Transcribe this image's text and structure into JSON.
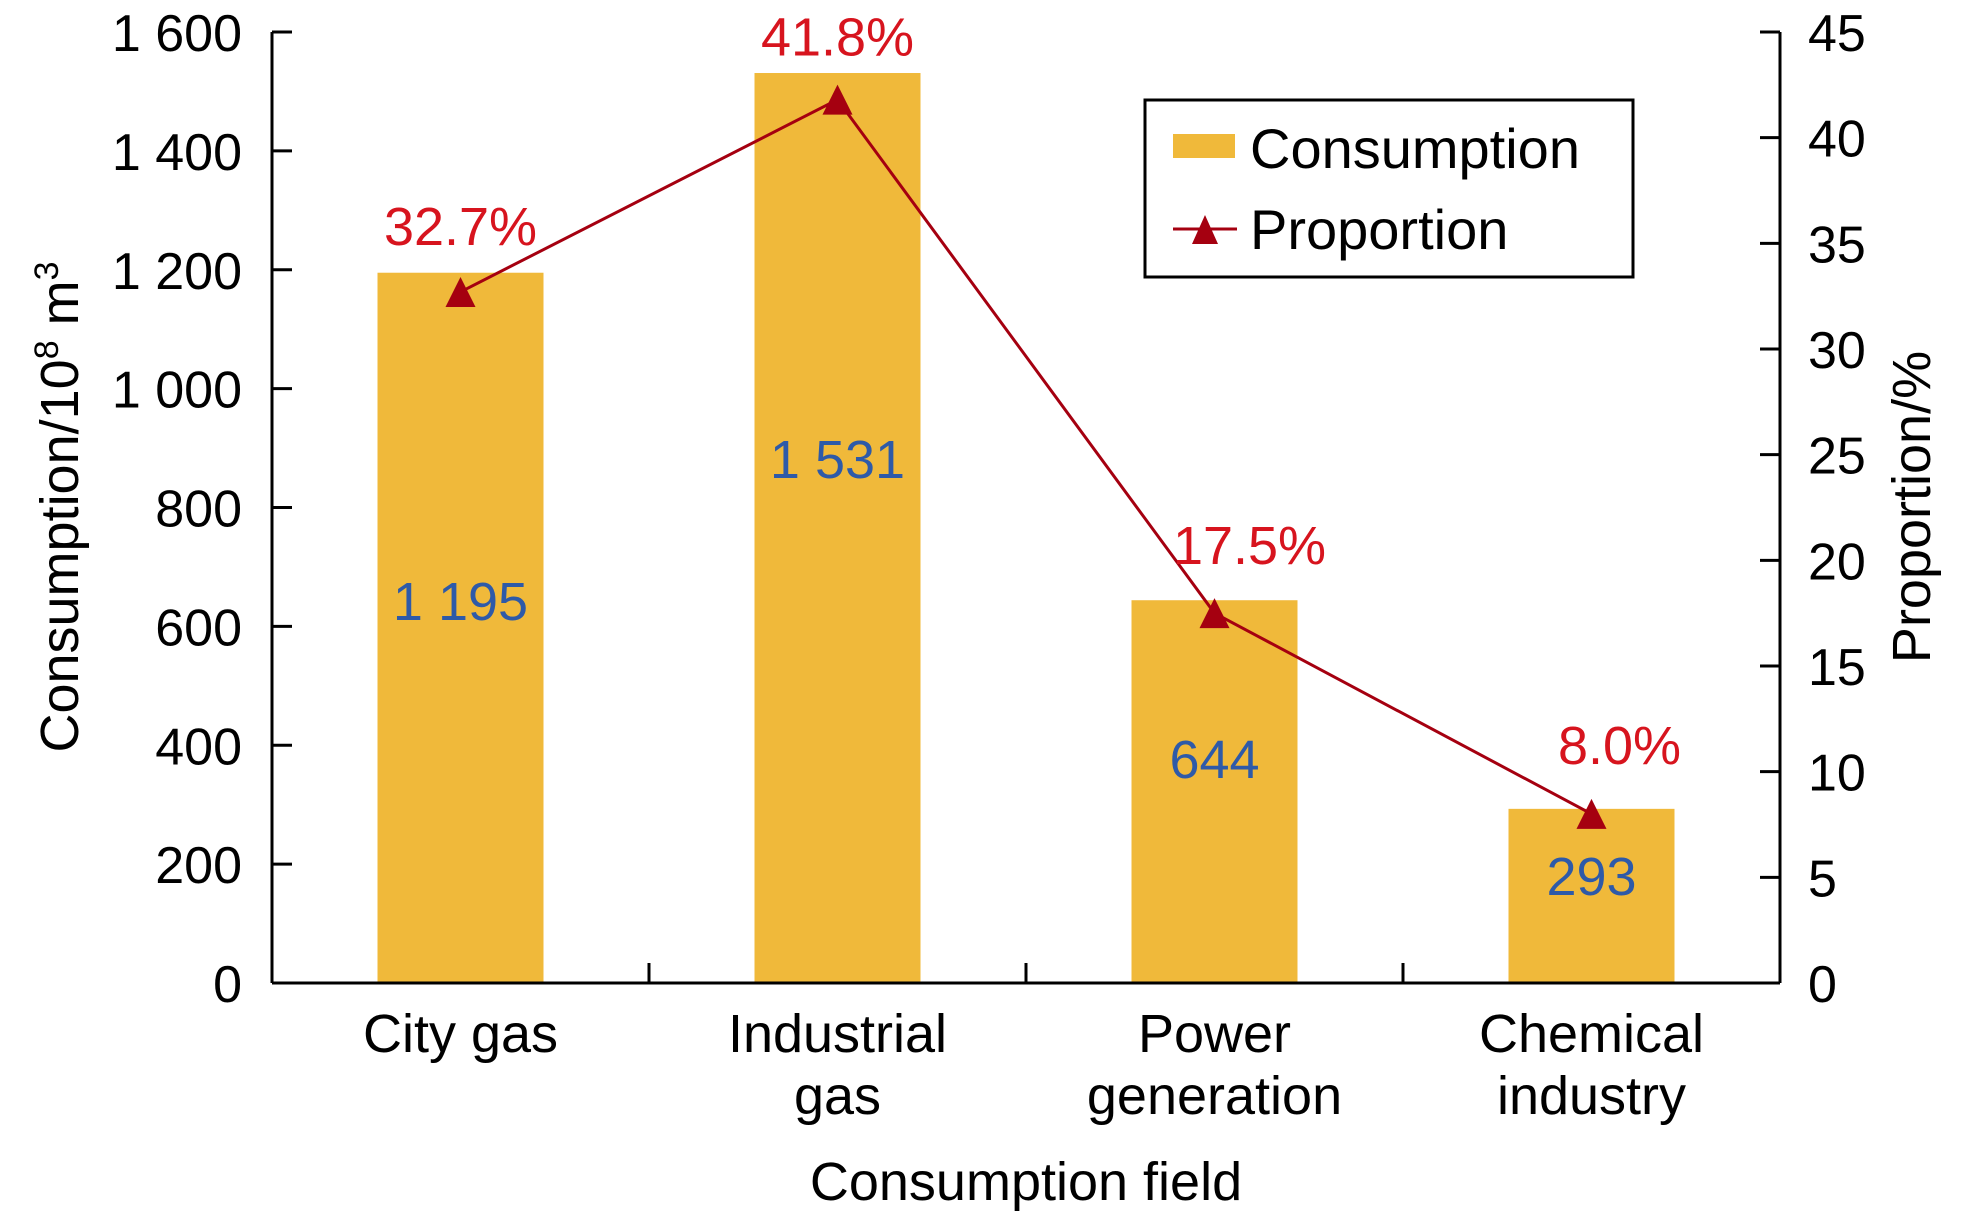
{
  "chart_data": {
    "type": "bar+line",
    "title": "",
    "xlabel": "Consumption field",
    "ylabel_left": {
      "base": "Consumption/10",
      "sup1": "8",
      "mid": " m",
      "sup2": "3"
    },
    "ylabel_right": "Proportion/%",
    "categories": [
      [
        "City gas"
      ],
      [
        "Industrial",
        "gas"
      ],
      [
        "Power",
        "generation"
      ],
      [
        "Chemical",
        "industry"
      ]
    ],
    "series": [
      {
        "name": "Consumption",
        "type": "bar",
        "axis": "left",
        "values": [
          1195,
          1531,
          644,
          293
        ],
        "labels": [
          "1 195",
          "1 531",
          "644",
          "293"
        ],
        "color": "#F0B93A",
        "label_color": "#2E5AA8"
      },
      {
        "name": "Proportion",
        "type": "line",
        "axis": "right",
        "marker": "triangle",
        "values": [
          32.7,
          41.8,
          17.5,
          8.0
        ],
        "labels": [
          "32.7%",
          "41.8%",
          "17.5%",
          "8.0%"
        ],
        "color": "#A50010",
        "label_color": "#D7141E"
      }
    ],
    "y_left": {
      "min": 0,
      "max": 1600,
      "ticks": [
        0,
        200,
        400,
        600,
        800,
        1000,
        1200,
        1400,
        1600
      ],
      "tick_labels": [
        "0",
        "200",
        "400",
        "600",
        "800",
        "1 000",
        "1 200",
        "1 400",
        "1 600"
      ]
    },
    "y_right": {
      "min": 0,
      "max": 45,
      "ticks": [
        0,
        5,
        10,
        15,
        20,
        25,
        30,
        35,
        40,
        45
      ],
      "tick_labels": [
        "0",
        "5",
        "10",
        "15",
        "20",
        "25",
        "30",
        "35",
        "40",
        "45"
      ]
    },
    "grid": false,
    "legend": {
      "position": "top-right",
      "entries": [
        {
          "label": "Consumption",
          "symbol": "bar"
        },
        {
          "label": "Proportion",
          "symbol": "line-triangle"
        }
      ]
    }
  }
}
